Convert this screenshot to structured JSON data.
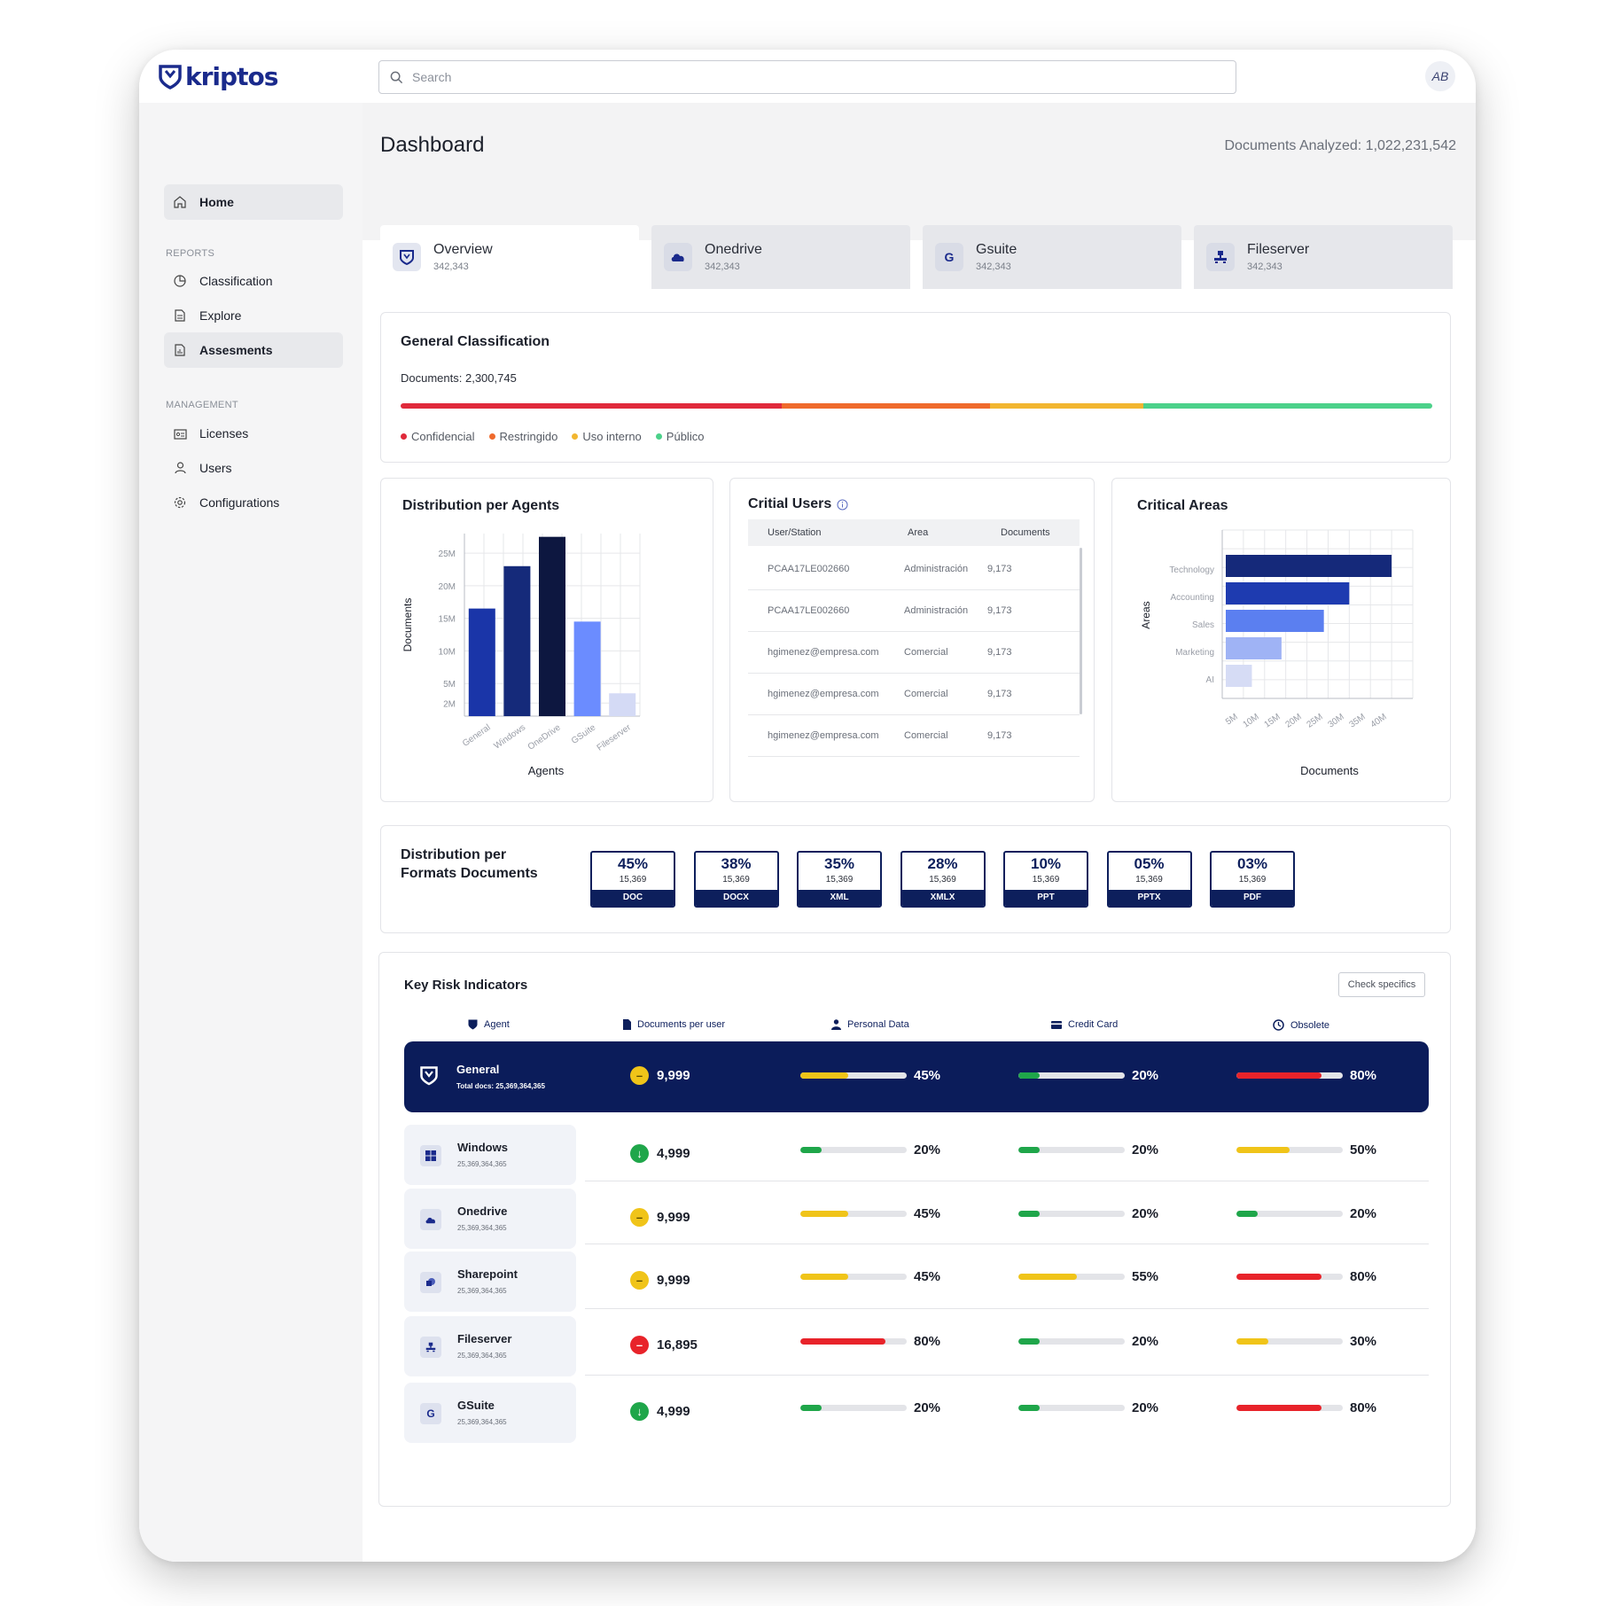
{
  "app": {
    "logo_text": "kriptos",
    "search_placeholder": "Search",
    "avatar_initials": "AB"
  },
  "sidebar": {
    "home": "Home",
    "reports_label": "REPORTS",
    "reports": [
      "Classification",
      "Explore",
      "Assesments"
    ],
    "management_label": "MANAGEMENT",
    "management": [
      "Licenses",
      "Users",
      "Configurations"
    ]
  },
  "header": {
    "title": "Dashboard",
    "docs_analyzed": "Documents Analyzed: 1,022,231,542"
  },
  "tabs": [
    {
      "name": "Overview",
      "count": "342,343",
      "icon": "shield-icon"
    },
    {
      "name": "Onedrive",
      "count": "342,343",
      "icon": "cloud-icon"
    },
    {
      "name": "Gsuite",
      "count": "342,343",
      "icon": "google-icon"
    },
    {
      "name": "Fileserver",
      "count": "342,343",
      "icon": "server-icon"
    }
  ],
  "general_classification": {
    "title": "General Classification",
    "documents": "Documents: 2,300,745",
    "segments": [
      {
        "label": "Confidencial",
        "share": 0.369,
        "color": "#e02a3b"
      },
      {
        "label": "Restringido",
        "share": 0.202,
        "color": "#ef6a2c"
      },
      {
        "label": "Uso interno",
        "share": 0.149,
        "color": "#f2b630"
      },
      {
        "label": "Público",
        "share": 0.28,
        "color": "#4cd18a"
      }
    ]
  },
  "distribution_agents": {
    "title": "Distribution per Agents",
    "chart_data": {
      "type": "bar",
      "title": "Distribution per Agents",
      "xlabel": "Agents",
      "ylabel": "Documents",
      "categories": [
        "General",
        "Windows",
        "OneDrive",
        "GSuite",
        "Fileserver"
      ],
      "values": [
        16.5,
        23,
        27.5,
        14.5,
        3.5
      ],
      "ytick_labels": [
        "2M",
        "5M",
        "10M",
        "15M",
        "20M",
        "25M"
      ],
      "ytick_values": [
        2,
        5,
        10,
        15,
        20,
        25
      ],
      "ylim": [
        0,
        28
      ],
      "colors": [
        "#1a35a8",
        "#152a7a",
        "#0d1740",
        "#6b8cff",
        "#d4daf5"
      ],
      "grid": true
    }
  },
  "critical_users": {
    "title": "Critial Users",
    "columns": [
      "User/Station",
      "Area",
      "Documents"
    ],
    "rows": [
      [
        "PCAA17LE002660",
        "Administración",
        "9,173"
      ],
      [
        "PCAA17LE002660",
        "Administración",
        "9,173"
      ],
      [
        "hgimenez@empresa.com",
        "Comercial",
        "9,173"
      ],
      [
        "hgimenez@empresa.com",
        "Comercial",
        "9,173"
      ],
      [
        "hgimenez@empresa.com",
        "Comercial",
        "9,173"
      ]
    ]
  },
  "critical_areas": {
    "title": "Critical Areas",
    "chart_data": {
      "type": "bar",
      "orientation": "horizontal",
      "title": "Critical Areas",
      "xlabel": "Documents",
      "ylabel": "Areas",
      "categories": [
        "Technology",
        "Accounting",
        "Sales",
        "Marketing",
        "AI"
      ],
      "values": [
        40,
        30,
        24,
        14,
        7
      ],
      "xtick_labels": [
        "5M",
        "10M",
        "15M",
        "20M",
        "25M",
        "30M",
        "35M",
        "40M"
      ],
      "xlim": [
        0,
        45
      ],
      "colors": [
        "#15297a",
        "#1e3bb0",
        "#5b7ff0",
        "#9fb3f5",
        "#d6dcf5"
      ],
      "grid": true
    }
  },
  "formats": {
    "title_line1": "Distribution per",
    "title_line2": "Formats Documents",
    "items": [
      {
        "pct": "45%",
        "count": "15,369",
        "label": "DOC"
      },
      {
        "pct": "38%",
        "count": "15,369",
        "label": "DOCX"
      },
      {
        "pct": "35%",
        "count": "15,369",
        "label": "XML"
      },
      {
        "pct": "28%",
        "count": "15,369",
        "label": "XMLX"
      },
      {
        "pct": "10%",
        "count": "15,369",
        "label": "PPT"
      },
      {
        "pct": "05%",
        "count": "15,369",
        "label": "PPTX"
      },
      {
        "pct": "03%",
        "count": "15,369",
        "label": "PDF"
      }
    ]
  },
  "kri": {
    "title": "Key Risk Indicators",
    "check_button": "Check specifics",
    "columns": [
      "Agent",
      "Documents per user",
      "Personal Data",
      "Credit Card",
      "Obsolete"
    ],
    "general": {
      "name": "General",
      "sub": "Total docs: 25,369,364,365",
      "docs": "9,999",
      "status": "warn",
      "personal": {
        "value": 0.45,
        "label": "45%",
        "color": "#f0c419"
      },
      "credit": {
        "value": 0.2,
        "label": "20%",
        "color": "#1fa64a"
      },
      "obsolete": {
        "value": 0.8,
        "label": "80%",
        "color": "#e8232a"
      }
    },
    "rows": [
      {
        "name": "Windows",
        "sub": "25,369,364,365",
        "icon": "windows-icon",
        "docs": "4,999",
        "status": "good",
        "personal": {
          "value": 0.2,
          "label": "20%",
          "color": "#1fa64a"
        },
        "credit": {
          "value": 0.2,
          "label": "20%",
          "color": "#1fa64a"
        },
        "obsolete": {
          "value": 0.5,
          "label": "50%",
          "color": "#f0c419"
        }
      },
      {
        "name": "Onedrive",
        "sub": "25,369,364,365",
        "icon": "cloud-icon",
        "docs": "9,999",
        "status": "warn",
        "personal": {
          "value": 0.45,
          "label": "45%",
          "color": "#f0c419"
        },
        "credit": {
          "value": 0.2,
          "label": "20%",
          "color": "#1fa64a"
        },
        "obsolete": {
          "value": 0.2,
          "label": "20%",
          "color": "#1fa64a"
        }
      },
      {
        "name": "Sharepoint",
        "sub": "25,369,364,365",
        "icon": "sharepoint-icon",
        "docs": "9,999",
        "status": "warn",
        "personal": {
          "value": 0.45,
          "label": "45%",
          "color": "#f0c419"
        },
        "credit": {
          "value": 0.55,
          "label": "55%",
          "color": "#f0c419"
        },
        "obsolete": {
          "value": 0.8,
          "label": "80%",
          "color": "#e8232a"
        }
      },
      {
        "name": "Fileserver",
        "sub": "25,369,364,365",
        "icon": "server-icon",
        "docs": "16,895",
        "status": "bad",
        "personal": {
          "value": 0.8,
          "label": "80%",
          "color": "#e8232a"
        },
        "credit": {
          "value": 0.2,
          "label": "20%",
          "color": "#1fa64a"
        },
        "obsolete": {
          "value": 0.3,
          "label": "30%",
          "color": "#f0c419"
        }
      },
      {
        "name": "GSuite",
        "sub": "25,369,364,365",
        "icon": "google-icon",
        "docs": "4,999",
        "status": "good",
        "personal": {
          "value": 0.2,
          "label": "20%",
          "color": "#1fa64a"
        },
        "credit": {
          "value": 0.2,
          "label": "20%",
          "color": "#1fa64a"
        },
        "obsolete": {
          "value": 0.8,
          "label": "80%",
          "color": "#e8232a"
        }
      }
    ]
  }
}
